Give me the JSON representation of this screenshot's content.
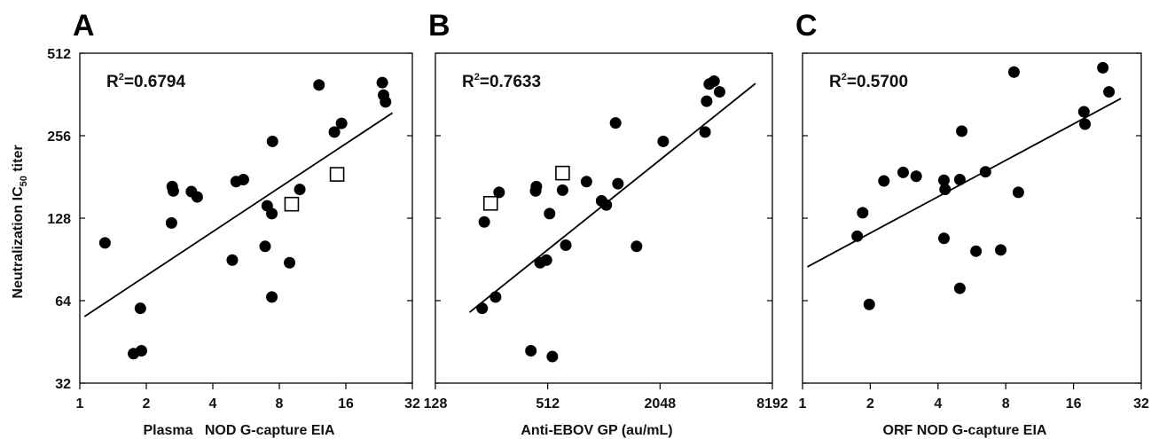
{
  "y_axis_label": {
    "main": "Neutralization IC",
    "sub": "50",
    "tail": " titer"
  },
  "chart_data": [
    {
      "type": "scatter",
      "panel": "A",
      "xlabel": "Plasma   NOD G-capture EIA",
      "ylabel": "Neutralization IC50 titer",
      "x_scale": "log2",
      "y_scale": "log2",
      "xlim": [
        1,
        32
      ],
      "ylim": [
        32,
        512
      ],
      "x_ticks": [
        1,
        2,
        4,
        8,
        16,
        32
      ],
      "y_ticks": [
        32,
        64,
        128,
        256,
        512
      ],
      "annotation": {
        "prefix": "R",
        "sup": "2",
        "value": "=0.6794"
      },
      "series": [
        {
          "marker": "filled-circle",
          "points": [
            [
              1.3,
              104
            ],
            [
              1.75,
              41
            ],
            [
              1.9,
              42
            ],
            [
              1.88,
              60
            ],
            [
              2.62,
              167
            ],
            [
              2.65,
              161
            ],
            [
              2.6,
              123
            ],
            [
              3.2,
              160
            ],
            [
              3.4,
              153
            ],
            [
              4.9,
              90
            ],
            [
              5.1,
              174
            ],
            [
              5.5,
              177
            ],
            [
              7.05,
              142
            ],
            [
              6.9,
              101
            ],
            [
              7.4,
              133
            ],
            [
              7.4,
              66
            ],
            [
              7.45,
              244
            ],
            [
              8.9,
              88
            ],
            [
              9.9,
              163
            ],
            [
              12.1,
              392
            ],
            [
              14.2,
              264
            ],
            [
              15.3,
              284
            ],
            [
              23.4,
              400
            ],
            [
              23.7,
              360
            ],
            [
              24.2,
              340
            ]
          ]
        },
        {
          "marker": "open-square",
          "points": [
            [
              9.1,
              144
            ],
            [
              14.6,
              185
            ]
          ]
        }
      ],
      "fit_line": [
        [
          1.05,
          56
        ],
        [
          26,
          310
        ]
      ]
    },
    {
      "type": "scatter",
      "panel": "B",
      "xlabel": "Anti-EBOV GP (au/mL)",
      "ylabel": "Neutralization IC50 titer",
      "x_scale": "log2",
      "y_scale": "log2",
      "xlim": [
        128,
        8192
      ],
      "ylim": [
        32,
        512
      ],
      "x_ticks": [
        128,
        512,
        2048,
        8192
      ],
      "y_ticks": [
        32,
        64,
        128,
        256,
        512
      ],
      "annotation": {
        "prefix": "R",
        "sup": "2",
        "value": "=0.7633"
      },
      "series": [
        {
          "marker": "filled-circle",
          "points": [
            [
              228,
              60
            ],
            [
              234,
              124
            ],
            [
              269,
              66
            ],
            [
              281,
              159
            ],
            [
              416,
              42
            ],
            [
              441,
              161
            ],
            [
              445,
              167
            ],
            [
              466,
              88
            ],
            [
              504,
              90
            ],
            [
              524,
              133
            ],
            [
              542,
              40
            ],
            [
              615,
              162
            ],
            [
              640,
              102
            ],
            [
              826,
              174
            ],
            [
              995,
              148
            ],
            [
              1055,
              143
            ],
            [
              1183,
              285
            ],
            [
              1218,
              171
            ],
            [
              1533,
              101
            ],
            [
              2130,
              244
            ],
            [
              3570,
              264
            ],
            [
              3640,
              342
            ],
            [
              3760,
              395
            ],
            [
              3990,
              405
            ],
            [
              4270,
              370
            ]
          ]
        },
        {
          "marker": "open-square",
          "points": [
            [
              253,
              145
            ],
            [
              615,
              187
            ]
          ]
        }
      ],
      "fit_line": [
        [
          195,
          58
        ],
        [
          6650,
          397
        ]
      ]
    },
    {
      "type": "scatter",
      "panel": "C",
      "xlabel": "ORF NOD G-capture EIA",
      "ylabel": "Neutralization IC50 titer",
      "x_scale": "log2",
      "y_scale": "log2",
      "xlim": [
        1,
        32
      ],
      "ylim": [
        32,
        512
      ],
      "x_ticks": [
        1,
        2,
        4,
        8,
        16,
        32
      ],
      "y_ticks": [
        32,
        64,
        128,
        256,
        512
      ],
      "annotation": {
        "prefix": "R",
        "sup": "2",
        "value": "=0.5700"
      },
      "series": [
        {
          "marker": "filled-circle",
          "points": [
            [
              1.75,
              110
            ],
            [
              1.85,
              134
            ],
            [
              1.98,
              62
            ],
            [
              2.3,
              175
            ],
            [
              2.8,
              188
            ],
            [
              3.2,
              182
            ],
            [
              4.25,
              176
            ],
            [
              4.3,
              163
            ],
            [
              4.25,
              108
            ],
            [
              5.0,
              177
            ],
            [
              5.1,
              266
            ],
            [
              5.0,
              71
            ],
            [
              5.9,
              97
            ],
            [
              6.5,
              189
            ],
            [
              7.6,
              98
            ],
            [
              8.7,
              437
            ],
            [
              9.1,
              159
            ],
            [
              17.8,
              313
            ],
            [
              18.0,
              282
            ],
            [
              21.6,
              453
            ],
            [
              23.0,
              370
            ]
          ]
        }
      ],
      "fit_line": [
        [
          1.05,
          85
        ],
        [
          26,
          350
        ]
      ]
    }
  ]
}
